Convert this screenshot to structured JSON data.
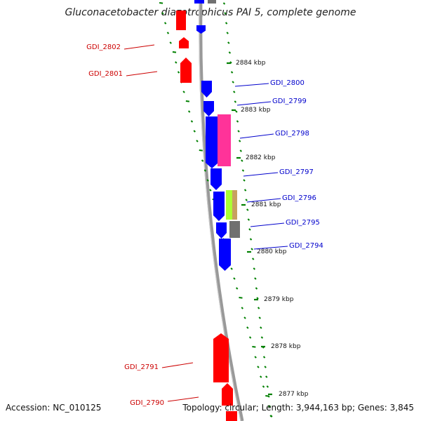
{
  "title": "Gluconacetobacter diazotrophicus PAI 5, complete genome",
  "footer": {
    "accession": "Accession: NC_010125",
    "summary": "Topology: circular; Length: 3,944,163 bp; Genes: 3,845"
  },
  "colors": {
    "forward": "#0000ff",
    "reverse": "#ff0000",
    "magenta": "#ff3399",
    "lime": "#aaff33",
    "tan": "#c8a060",
    "grey": "#707070",
    "tick": "#008000",
    "label_forward": "#0000cc",
    "label_reverse": "#cc0000"
  },
  "kbp_labels": [
    "2884 kbp",
    "2883 kbp",
    "2882 kbp",
    "2881 kbp",
    "2880 kbp",
    "2879 kbp",
    "2878 kbp",
    "2877 kbp"
  ],
  "forward_genes": [
    "GDI_2800",
    "GDI_2799",
    "GDI_2798",
    "GDI_2797",
    "GDI_2796",
    "GDI_2795",
    "GDI_2794"
  ],
  "reverse_genes": [
    "GDI_2802",
    "GDI_2801",
    "GDI_2791",
    "GDI_2790"
  ]
}
